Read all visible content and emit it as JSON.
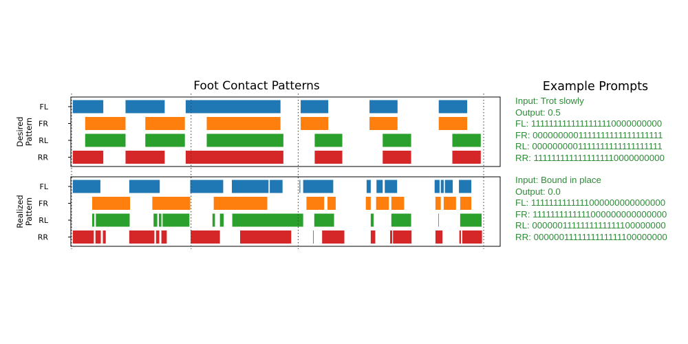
{
  "chart_data": {
    "type": "gantt",
    "title": "Foot Contact Patterns",
    "time_range": [
      0,
      100
    ],
    "phase_lines": [
      0,
      29,
      55,
      100
    ],
    "colors": {
      "FL": "#1f77b4",
      "FR": "#ff7f0e",
      "RL": "#2ca02c",
      "RR": "#d62728"
    },
    "panels": [
      {
        "ylabel": [
          "Desired",
          "Pattern"
        ],
        "rows": [
          {
            "label": "FL",
            "intervals": [
              [
                0.3,
                7.7
              ],
              [
                13.1,
                22.6
              ],
              [
                27.7,
                50.7
              ],
              [
                55.6,
                62.3
              ],
              [
                72.3,
                79.1
              ],
              [
                89.1,
                96.0
              ]
            ]
          },
          {
            "label": "FR",
            "intervals": [
              [
                3.3,
                13.1
              ],
              [
                17.9,
                27.5
              ],
              [
                32.8,
                50.7
              ],
              [
                55.6,
                62.3
              ],
              [
                72.3,
                79.1
              ],
              [
                89.1,
                96.0
              ]
            ]
          },
          {
            "label": "RL",
            "intervals": [
              [
                3.3,
                13.1
              ],
              [
                17.9,
                27.5
              ],
              [
                32.8,
                51.4
              ],
              [
                59.0,
                65.7
              ],
              [
                75.5,
                82.4
              ],
              [
                92.4,
                99.3
              ]
            ]
          },
          {
            "label": "RR",
            "intervals": [
              [
                0.3,
                7.7
              ],
              [
                13.1,
                22.6
              ],
              [
                27.7,
                51.4
              ],
              [
                59.0,
                65.7
              ],
              [
                75.5,
                82.4
              ],
              [
                92.4,
                99.3
              ]
            ]
          }
        ]
      },
      {
        "ylabel": [
          "Realized",
          "Pattern"
        ],
        "rows": [
          {
            "label": "FL",
            "intervals": [
              [
                0.3,
                7.0
              ],
              [
                14.0,
                21.4
              ],
              [
                28.8,
                36.8
              ],
              [
                38.9,
                47.8
              ],
              [
                48.1,
                51.2
              ],
              [
                55.3,
                55.5
              ],
              [
                56.2,
                63.5
              ],
              [
                71.6,
                72.6
              ],
              [
                74.0,
                75.5
              ],
              [
                76.0,
                79.0
              ],
              [
                88.1,
                89.3
              ],
              [
                89.6,
                90.3
              ],
              [
                90.6,
                92.5
              ],
              [
                94.0,
                97.0
              ]
            ]
          },
          {
            "label": "FR",
            "intervals": [
              [
                5.0,
                14.2
              ],
              [
                19.6,
                28.8
              ],
              [
                34.5,
                47.5
              ],
              [
                57.0,
                61.3
              ],
              [
                62.1,
                64.1
              ],
              [
                71.4,
                72.6
              ],
              [
                73.9,
                77.0
              ],
              [
                77.6,
                80.7
              ],
              [
                88.3,
                89.6
              ],
              [
                90.3,
                93.3
              ],
              [
                94.3,
                97.0
              ]
            ]
          },
          {
            "label": "RL",
            "intervals": [
              [
                5.0,
                5.5
              ],
              [
                5.9,
                14.1
              ],
              [
                19.9,
                20.8
              ],
              [
                21.2,
                21.8
              ],
              [
                22.1,
                28.6
              ],
              [
                34.2,
                34.8
              ],
              [
                36.0,
                36.9
              ],
              [
                39.0,
                56.2
              ],
              [
                58.9,
                63.7
              ],
              [
                72.6,
                73.3
              ],
              [
                77.6,
                82.4
              ],
              [
                89.0,
                89.1
              ],
              [
                94.3,
                99.5
              ]
            ]
          },
          {
            "label": "RR",
            "intervals": [
              [
                0.3,
                5.4
              ],
              [
                5.8,
                7.1
              ],
              [
                7.6,
                8.3
              ],
              [
                14.0,
                20.1
              ],
              [
                20.5,
                21.3
              ],
              [
                21.8,
                23.1
              ],
              [
                28.9,
                36.0
              ],
              [
                40.9,
                53.3
              ],
              [
                58.6,
                58.7
              ],
              [
                60.8,
                66.2
              ],
              [
                72.6,
                73.7
              ],
              [
                77.3,
                77.8
              ],
              [
                78.0,
                82.5
              ],
              [
                88.3,
                90.0
              ],
              [
                94.1,
                94.5
              ],
              [
                94.8,
                99.6
              ]
            ]
          }
        ]
      }
    ]
  },
  "prompts": {
    "title": "Example Prompts",
    "text_color": "#2e8b38",
    "blocks": [
      {
        "lines": [
          "Input: Trot slowly",
          "Output: 0.5",
          "FL: 1111111111111111110000000000",
          "FR: 0000000001111111111111111111",
          "RL: 0000000001111111111111111111",
          "RR: 1111111111111111110000000000"
        ]
      },
      {
        "lines": [
          "Input: Bound in place",
          "Output: 0.0",
          "FL: 1111111111111000000000000000",
          "FR: 1111111111111000000000000000",
          "RL: 0000001111111111111100000000",
          "RR: 0000001111111111111100000000"
        ]
      }
    ]
  }
}
